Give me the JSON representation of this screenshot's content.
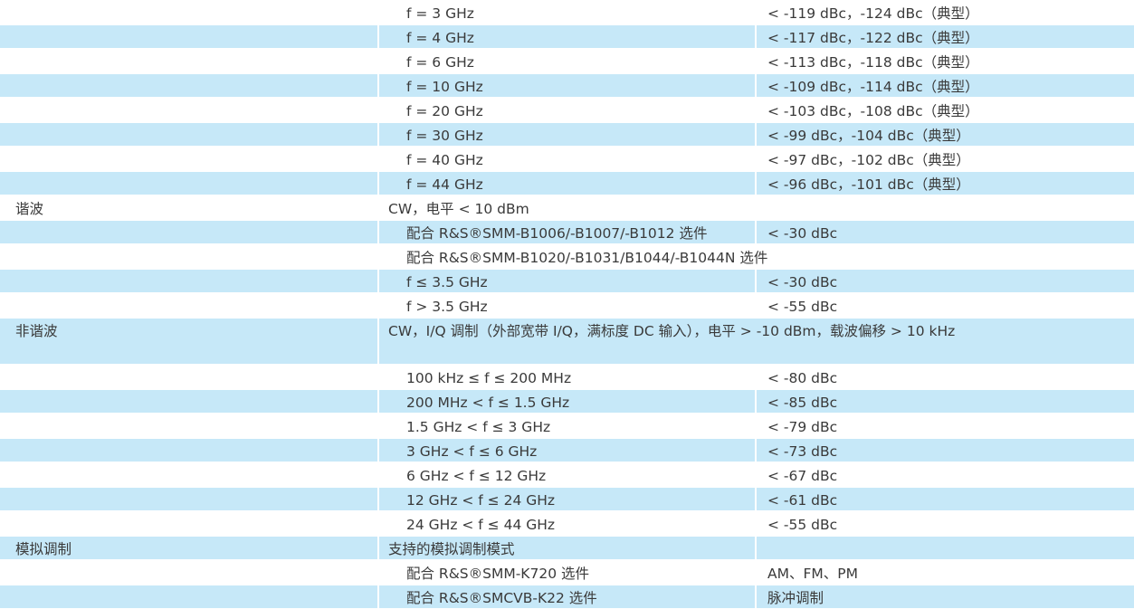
{
  "rows": [
    {
      "label": "",
      "param": "f = 3 GHz",
      "value": "< -119 dBc，-124 dBc（典型）",
      "sub": true,
      "span": false,
      "blue": false
    },
    {
      "label": "",
      "param": "f = 4 GHz",
      "value": "< -117 dBc，-122 dBc（典型）",
      "sub": true,
      "span": false,
      "blue": true
    },
    {
      "label": "",
      "param": "f = 6 GHz",
      "value": "< -113 dBc，-118 dBc（典型）",
      "sub": true,
      "span": false,
      "blue": false
    },
    {
      "label": "",
      "param": "f = 10 GHz",
      "value": "< -109 dBc，-114 dBc（典型）",
      "sub": true,
      "span": false,
      "blue": true
    },
    {
      "label": "",
      "param": "f = 20 GHz",
      "value": "< -103 dBc，-108 dBc（典型）",
      "sub": true,
      "span": false,
      "blue": false
    },
    {
      "label": "",
      "param": "f = 30 GHz",
      "value": "< -99 dBc，-104 dBc（典型）",
      "sub": true,
      "span": false,
      "blue": true
    },
    {
      "label": "",
      "param": "f = 40 GHz",
      "value": "< -97 dBc，-102 dBc（典型）",
      "sub": true,
      "span": false,
      "blue": false
    },
    {
      "label": "",
      "param": "f = 44 GHz",
      "value": "< -96 dBc，-101 dBc（典型）",
      "sub": true,
      "span": false,
      "blue": true
    },
    {
      "label": "谐波",
      "param": "CW，电平 < 10 dBm",
      "value": "",
      "sub": false,
      "span": true,
      "blue": false
    },
    {
      "label": "",
      "param": "配合 R&S®SMM-B1006/-B1007/-B1012 选件",
      "value": "< -30 dBc",
      "sub": true,
      "span": false,
      "blue": true
    },
    {
      "label": "",
      "param": "配合 R&S®SMM-B1020/-B1031/B1044/-B1044N 选件",
      "value": "",
      "sub": true,
      "span": true,
      "blue": false
    },
    {
      "label": "",
      "param": "f ≤ 3.5 GHz",
      "value": "< -30 dBc",
      "sub": true,
      "span": false,
      "blue": true
    },
    {
      "label": "",
      "param": "f > 3.5 GHz",
      "value": "< -55 dBc",
      "sub": true,
      "span": false,
      "blue": false
    },
    {
      "label": "非谐波",
      "param": "CW，I/Q 调制（外部宽带 I/Q，满标度 DC 输入），电平 > -10 dBm，载波偏移 > 10 kHz",
      "value": "",
      "sub": false,
      "span": true,
      "blue": true,
      "tall": true
    },
    {
      "label": "",
      "param": "100 kHz ≤ f ≤ 200 MHz",
      "value": "< -80 dBc",
      "sub": true,
      "span": false,
      "blue": false
    },
    {
      "label": "",
      "param": "200 MHz < f ≤ 1.5 GHz",
      "value": "< -85 dBc",
      "sub": true,
      "span": false,
      "blue": true
    },
    {
      "label": "",
      "param": "1.5 GHz < f ≤ 3 GHz",
      "value": "< -79 dBc",
      "sub": true,
      "span": false,
      "blue": false
    },
    {
      "label": "",
      "param": "3 GHz < f ≤ 6 GHz",
      "value": "< -73 dBc",
      "sub": true,
      "span": false,
      "blue": true
    },
    {
      "label": "",
      "param": "6 GHz < f ≤ 12 GHz",
      "value": "< -67 dBc",
      "sub": true,
      "span": false,
      "blue": false
    },
    {
      "label": "",
      "param": "12 GHz < f ≤ 24 GHz",
      "value": "< -61 dBc",
      "sub": true,
      "span": false,
      "blue": true
    },
    {
      "label": "",
      "param": "24 GHz < f ≤ 44 GHz",
      "value": "< -55 dBc",
      "sub": true,
      "span": false,
      "blue": false
    },
    {
      "label": "模拟调制",
      "param": "支持的模拟调制模式",
      "value": "",
      "sub": false,
      "span": false,
      "blue": true
    },
    {
      "label": "",
      "param": "配合 R&S®SMM-K720 选件",
      "value": "AM、FM、PM",
      "sub": true,
      "span": false,
      "blue": false
    },
    {
      "label": "",
      "param": "配合 R&S®SMCVB-K22 选件",
      "value": "脉冲调制",
      "sub": true,
      "span": false,
      "blue": true
    }
  ],
  "colors": {
    "stripe": "#c6e8f8",
    "text": "#3a3a3a"
  }
}
